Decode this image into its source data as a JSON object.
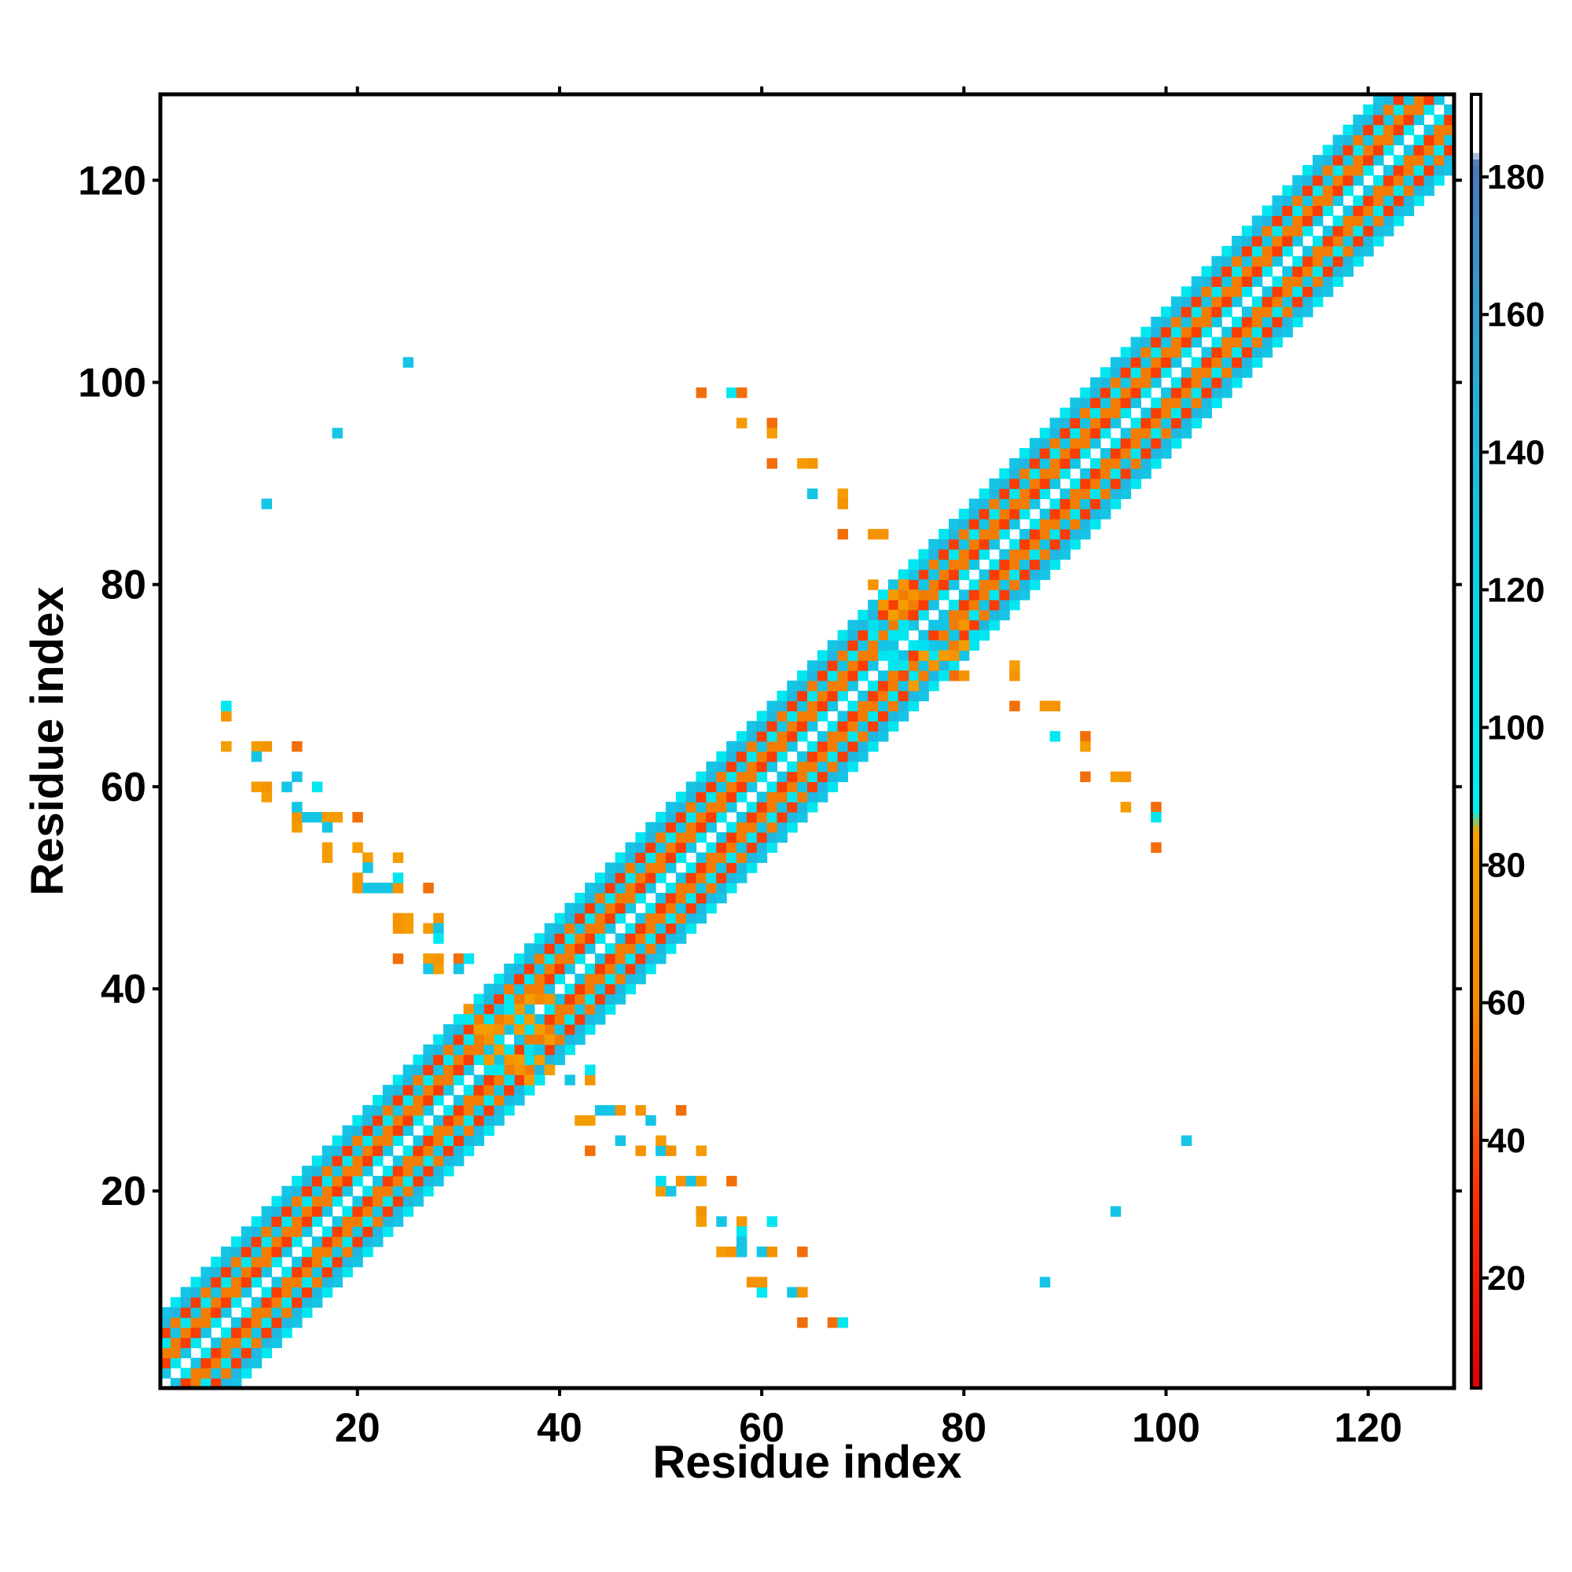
{
  "chart_data": {
    "type": "heatmap",
    "title": "",
    "xlabel": "Residue index",
    "ylabel": "Residue index",
    "xlim": [
      1,
      128
    ],
    "ylim": [
      1,
      128
    ],
    "x_ticks": [
      20,
      40,
      60,
      80,
      100,
      120
    ],
    "y_ticks": [
      20,
      40,
      60,
      80,
      100,
      120
    ],
    "colorbar": {
      "min": 4,
      "max": 192,
      "ticks": [
        20,
        40,
        60,
        80,
        100,
        120,
        140,
        160,
        180
      ],
      "stops": [
        {
          "value": 4,
          "color": "#e00000"
        },
        {
          "value": 30,
          "color": "#ff2a00"
        },
        {
          "value": 45,
          "color": "#f06010"
        },
        {
          "value": 60,
          "color": "#f58a00"
        },
        {
          "value": 85,
          "color": "#f5a000"
        },
        {
          "value": 88,
          "color": "#00f0f0"
        },
        {
          "value": 110,
          "color": "#00e0f0"
        },
        {
          "value": 140,
          "color": "#20b8e0"
        },
        {
          "value": 170,
          "color": "#3a90d0"
        },
        {
          "value": 182,
          "color": "#4a78b8"
        },
        {
          "value": 184,
          "color": "#ffffff"
        },
        {
          "value": 192,
          "color": "#ffffff"
        }
      ]
    },
    "diagonal_band": {
      "description_values_by_offset": [
        {
          "offset": 1,
          "value": 100
        },
        {
          "offset": 2,
          "value": 35
        },
        {
          "offset": 3,
          "value": 55
        },
        {
          "offset": 4,
          "value": 100
        },
        {
          "offset": 5,
          "value": 35
        },
        {
          "offset": 6,
          "value": 140
        },
        {
          "offset": 7,
          "value": 100
        }
      ],
      "cells_per_side": 7
    },
    "offdiag_cells": [
      [
        64,
        7,
        50
      ],
      [
        67,
        7,
        50
      ],
      [
        68,
        7,
        100
      ],
      [
        60,
        10,
        100
      ],
      [
        63,
        10,
        130
      ],
      [
        64,
        10,
        70
      ],
      [
        59,
        11,
        70
      ],
      [
        60,
        11,
        70
      ],
      [
        88,
        11,
        130
      ],
      [
        56,
        14,
        80
      ],
      [
        57,
        14,
        70
      ],
      [
        58,
        14,
        130
      ],
      [
        60,
        14,
        130
      ],
      [
        61,
        14,
        70
      ],
      [
        64,
        14,
        50
      ],
      [
        56,
        17,
        130
      ],
      [
        58,
        17,
        75
      ],
      [
        61,
        17,
        100
      ],
      [
        54,
        18,
        70
      ],
      [
        54,
        17,
        80
      ],
      [
        58,
        16,
        100
      ],
      [
        58,
        15,
        130
      ],
      [
        95,
        18,
        130
      ],
      [
        50,
        20,
        80
      ],
      [
        51,
        20,
        130
      ],
      [
        52,
        21,
        70
      ],
      [
        53,
        21,
        130
      ],
      [
        54,
        21,
        80
      ],
      [
        57,
        21,
        50
      ],
      [
        50,
        21,
        110
      ],
      [
        48,
        24,
        70
      ],
      [
        50,
        24,
        130
      ],
      [
        51,
        24,
        70
      ],
      [
        54,
        24,
        80
      ],
      [
        43,
        24,
        50
      ],
      [
        46,
        25,
        130
      ],
      [
        50,
        25,
        80
      ],
      [
        42,
        27,
        80
      ],
      [
        43,
        27,
        80
      ],
      [
        44,
        28,
        130
      ],
      [
        45,
        28,
        130
      ],
      [
        46,
        28,
        70
      ],
      [
        48,
        28,
        70
      ],
      [
        49,
        27,
        130
      ],
      [
        52,
        28,
        50
      ],
      [
        102,
        25,
        130
      ],
      [
        41,
        31,
        130
      ],
      [
        43,
        31,
        70
      ],
      [
        43,
        32,
        100
      ],
      [
        7,
        64,
        80
      ],
      [
        10,
        64,
        80
      ],
      [
        11,
        64,
        70
      ],
      [
        14,
        64,
        50
      ],
      [
        7,
        67,
        70
      ],
      [
        7,
        68,
        100
      ],
      [
        10,
        63,
        130
      ],
      [
        10,
        60,
        80
      ],
      [
        11,
        60,
        70
      ],
      [
        11,
        59,
        80
      ],
      [
        13,
        60,
        130
      ],
      [
        14,
        61,
        130
      ],
      [
        16,
        60,
        100
      ],
      [
        14,
        56,
        80
      ],
      [
        14,
        57,
        70
      ],
      [
        14,
        58,
        130
      ],
      [
        15,
        57,
        130
      ],
      [
        16,
        57,
        130
      ],
      [
        17,
        57,
        80
      ],
      [
        18,
        57,
        80
      ],
      [
        17,
        56,
        130
      ],
      [
        20,
        57,
        50
      ],
      [
        17,
        54,
        80
      ],
      [
        17,
        53,
        80
      ],
      [
        20,
        54,
        80
      ],
      [
        21,
        53,
        80
      ],
      [
        20,
        51,
        70
      ],
      [
        20,
        50,
        70
      ],
      [
        21,
        50,
        130
      ],
      [
        21,
        52,
        130
      ],
      [
        22,
        50,
        130
      ],
      [
        23,
        50,
        130
      ],
      [
        24,
        50,
        70
      ],
      [
        24,
        51,
        100
      ],
      [
        24,
        53,
        80
      ],
      [
        27,
        50,
        50
      ],
      [
        24,
        47,
        70
      ],
      [
        25,
        47,
        80
      ],
      [
        24,
        46,
        70
      ],
      [
        25,
        46,
        80
      ],
      [
        27,
        46,
        80
      ],
      [
        28,
        47,
        70
      ],
      [
        28,
        46,
        130
      ],
      [
        28,
        45,
        100
      ],
      [
        24,
        43,
        50
      ],
      [
        27,
        43,
        80
      ],
      [
        28,
        43,
        70
      ],
      [
        27,
        42,
        130
      ],
      [
        28,
        42,
        80
      ],
      [
        30,
        43,
        50
      ],
      [
        31,
        43,
        100
      ],
      [
        30,
        42,
        130
      ],
      [
        18,
        95,
        130
      ],
      [
        11,
        88,
        130
      ],
      [
        25,
        102,
        130
      ],
      [
        54,
        99,
        50
      ],
      [
        57,
        99,
        100
      ],
      [
        58,
        99,
        50
      ],
      [
        58,
        96,
        80
      ],
      [
        61,
        96,
        50
      ],
      [
        61,
        95,
        80
      ],
      [
        61,
        92,
        50
      ],
      [
        64,
        92,
        80
      ],
      [
        65,
        92,
        70
      ],
      [
        65,
        89,
        130
      ],
      [
        68,
        89,
        80
      ],
      [
        68,
        88,
        70
      ],
      [
        68,
        85,
        50
      ],
      [
        71,
        85,
        70
      ],
      [
        72,
        85,
        70
      ],
      [
        85,
        72,
        80
      ],
      [
        85,
        71,
        70
      ],
      [
        85,
        68,
        50
      ],
      [
        88,
        68,
        70
      ],
      [
        89,
        68,
        70
      ],
      [
        89,
        65,
        100
      ],
      [
        92,
        65,
        50
      ],
      [
        92,
        64,
        80
      ],
      [
        92,
        61,
        50
      ],
      [
        95,
        61,
        80
      ],
      [
        96,
        61,
        70
      ],
      [
        96,
        58,
        80
      ],
      [
        99,
        58,
        50
      ],
      [
        99,
        57,
        100
      ],
      [
        99,
        54,
        50
      ]
    ],
    "junction_cells": [
      [
        31,
        38,
        70
      ],
      [
        32,
        38,
        130
      ],
      [
        33,
        37,
        100
      ],
      [
        31,
        37,
        100
      ],
      [
        32,
        36,
        80
      ],
      [
        33,
        36,
        80
      ],
      [
        34,
        36,
        70
      ],
      [
        31,
        35,
        100
      ],
      [
        33,
        35,
        70
      ],
      [
        34,
        34,
        80
      ],
      [
        35,
        34,
        100
      ],
      [
        33,
        33,
        80
      ],
      [
        35,
        33,
        70
      ],
      [
        36,
        33,
        80
      ],
      [
        34,
        32,
        100
      ],
      [
        36,
        32,
        70
      ],
      [
        35,
        31,
        110
      ],
      [
        37,
        31,
        80
      ],
      [
        38,
        31,
        100
      ],
      [
        36,
        35,
        130
      ],
      [
        37,
        34,
        110
      ],
      [
        38,
        33,
        80
      ],
      [
        38,
        36,
        80
      ],
      [
        39,
        35,
        80
      ],
      [
        37,
        37,
        80
      ],
      [
        39,
        38,
        100
      ],
      [
        35,
        37,
        70
      ],
      [
        36,
        38,
        80
      ],
      [
        37,
        39,
        80
      ],
      [
        38,
        39,
        60
      ],
      [
        39,
        39,
        70
      ],
      [
        39,
        32,
        80
      ],
      [
        38,
        34,
        130
      ],
      [
        36,
        36,
        80
      ],
      [
        34,
        38,
        130
      ],
      [
        35,
        38,
        100
      ],
      [
        71,
        80,
        70
      ],
      [
        73,
        77,
        80
      ],
      [
        74,
        78,
        80
      ],
      [
        75,
        79,
        70
      ],
      [
        76,
        80,
        130
      ],
      [
        75,
        81,
        130
      ],
      [
        76,
        82,
        130
      ],
      [
        77,
        81,
        130
      ],
      [
        75,
        82,
        100
      ],
      [
        74,
        76,
        100
      ],
      [
        72,
        76,
        130
      ],
      [
        73,
        75,
        100
      ],
      [
        71,
        75,
        100
      ],
      [
        77,
        74,
        130
      ],
      [
        78,
        73,
        80
      ],
      [
        79,
        73,
        70
      ],
      [
        80,
        74,
        80
      ],
      [
        79,
        75,
        130
      ],
      [
        81,
        75,
        110
      ],
      [
        82,
        75,
        100
      ],
      [
        78,
        76,
        130
      ],
      [
        80,
        76,
        70
      ],
      [
        79,
        71,
        50
      ],
      [
        80,
        71,
        70
      ],
      [
        78,
        71,
        100
      ],
      [
        77,
        72,
        70
      ],
      [
        76,
        73,
        80
      ],
      [
        74,
        72,
        100
      ],
      [
        75,
        70,
        80
      ],
      [
        74,
        71,
        40
      ],
      [
        72,
        74,
        130
      ],
      [
        73,
        73,
        100
      ],
      [
        71,
        76,
        110
      ],
      [
        76,
        74,
        110
      ],
      [
        77,
        76,
        130
      ],
      [
        73,
        79,
        80
      ],
      [
        74,
        80,
        70
      ],
      [
        72,
        78,
        70
      ]
    ]
  }
}
